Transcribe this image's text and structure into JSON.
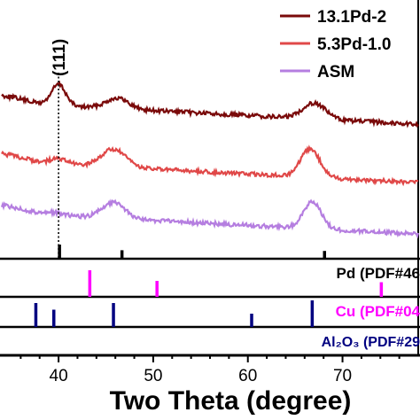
{
  "chart_data": {
    "type": "line",
    "xlabel": "Two Theta (degree)",
    "xlim": [
      34,
      78
    ],
    "x_ticks": [
      40,
      50,
      60,
      70
    ],
    "x_tick_labels": [
      "40",
      "50",
      "60",
      "70"
    ],
    "grid": false,
    "legend_position": "top-right",
    "peak_annotation": "(111)",
    "peak_annotation_x": 40.0,
    "series": [
      {
        "name": "13.1Pd-2",
        "color": "#7a0a0a",
        "offset": 120,
        "peaks": [
          [
            40.0,
            24,
            0.75
          ],
          [
            46.2,
            12,
            1.2
          ],
          [
            67.0,
            18,
            1.2
          ]
        ]
      },
      {
        "name": "5.3Pd-1.0",
        "color": "#e04848",
        "offset": 182,
        "peaks": [
          [
            40.0,
            6,
            0.9
          ],
          [
            45.8,
            20,
            1.3
          ],
          [
            66.6,
            32,
            1.0
          ]
        ]
      },
      {
        "name": "ASM",
        "color": "#b57ee0",
        "offset": 240,
        "peaks": [
          [
            39.5,
            3,
            1.0
          ],
          [
            45.8,
            18,
            1.2
          ],
          [
            66.8,
            30,
            0.95
          ]
        ]
      }
    ],
    "reference_panels": [
      {
        "label": "Pd (PDF#46",
        "color": "#ff00ff",
        "lines": [
          40.1,
          46.7,
          68.1
        ],
        "heights": [
          1.0,
          0.55,
          0.45
        ]
      },
      {
        "label": "Pd (PDF#46",
        "color": "#ff00ff",
        "lines": [
          43.3,
          50.4,
          74.1
        ],
        "heights": [
          1.0,
          0.6,
          0.55
        ]
      },
      {
        "label": "Cu (PDF#04",
        "color": "#ff00ff",
        "lines": [],
        "heights": []
      },
      {
        "label": "Al2O3 (PDF#29",
        "color": "#000080",
        "lines": [
          37.6,
          39.5,
          45.8,
          60.4,
          66.8
        ],
        "heights": [
          0.9,
          0.65,
          0.9,
          0.5,
          1.0
        ]
      }
    ],
    "ref_top": {
      "color": "#000000",
      "lines": [
        40.1,
        46.7,
        68.1
      ],
      "heights": [
        1.0,
        0.6,
        0.55
      ]
    },
    "pd_ref": {
      "label": "Pd (PDF#46",
      "color": "#000000"
    },
    "cu_ref": {
      "label": "Cu (PDF#04",
      "color": "#ff00ff",
      "lines": [
        43.3,
        50.4,
        74.1
      ],
      "heights": [
        1.0,
        0.6,
        0.55
      ]
    },
    "al_ref": {
      "label": "Al₂O₃ (PDF#29",
      "color": "#000080",
      "lines": [
        37.6,
        39.5,
        45.8,
        60.4,
        66.8
      ],
      "heights": [
        0.9,
        0.65,
        0.9,
        0.5,
        1.0
      ]
    }
  }
}
